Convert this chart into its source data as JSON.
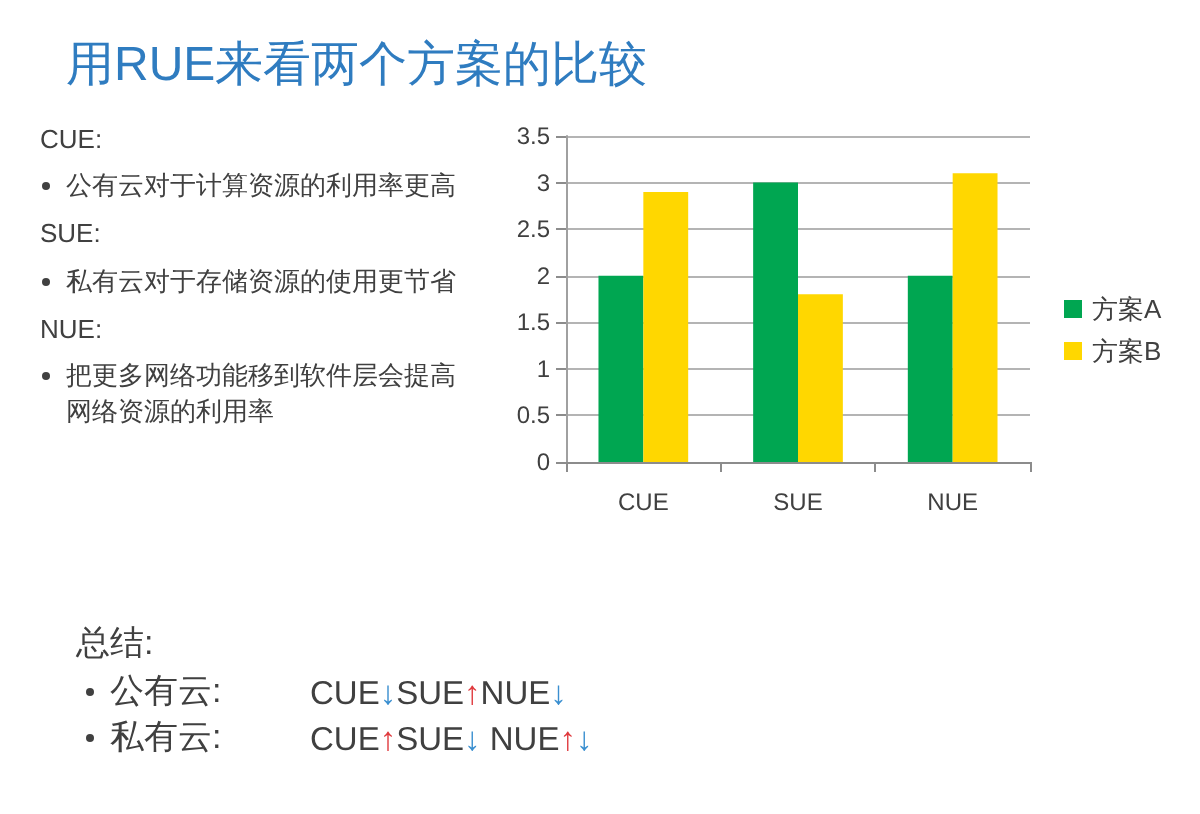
{
  "chart_data": {
    "type": "bar",
    "title": "用RUE来看两个方案的比较",
    "categories": [
      "CUE",
      "SUE",
      "NUE"
    ],
    "series": [
      {
        "name": "方案A",
        "color": "#00a651",
        "values": [
          2,
          3,
          2
        ]
      },
      {
        "name": "方案B",
        "color": "#ffd700",
        "values": [
          2.9,
          1.8,
          3.1
        ]
      }
    ],
    "ylim": [
      0,
      3.5
    ],
    "yticks": [
      0,
      0.5,
      1,
      1.5,
      2,
      2.5,
      3,
      3.5
    ],
    "grid": "y",
    "legend": "right",
    "annotations": [
      "CUE:",
      "公有云对于计算资源的利用率更高",
      "SUE:",
      "私有云对于存储资源的使用更节省",
      "NUE:",
      "把更多网络功能移到软件层会提高网络资源的利用率",
      "总结:",
      "公有云:",
      "CUE↓SUE↑NUE↓",
      "私有云:",
      "CUE↑SUE↓ NUE↑↓"
    ]
  }
}
